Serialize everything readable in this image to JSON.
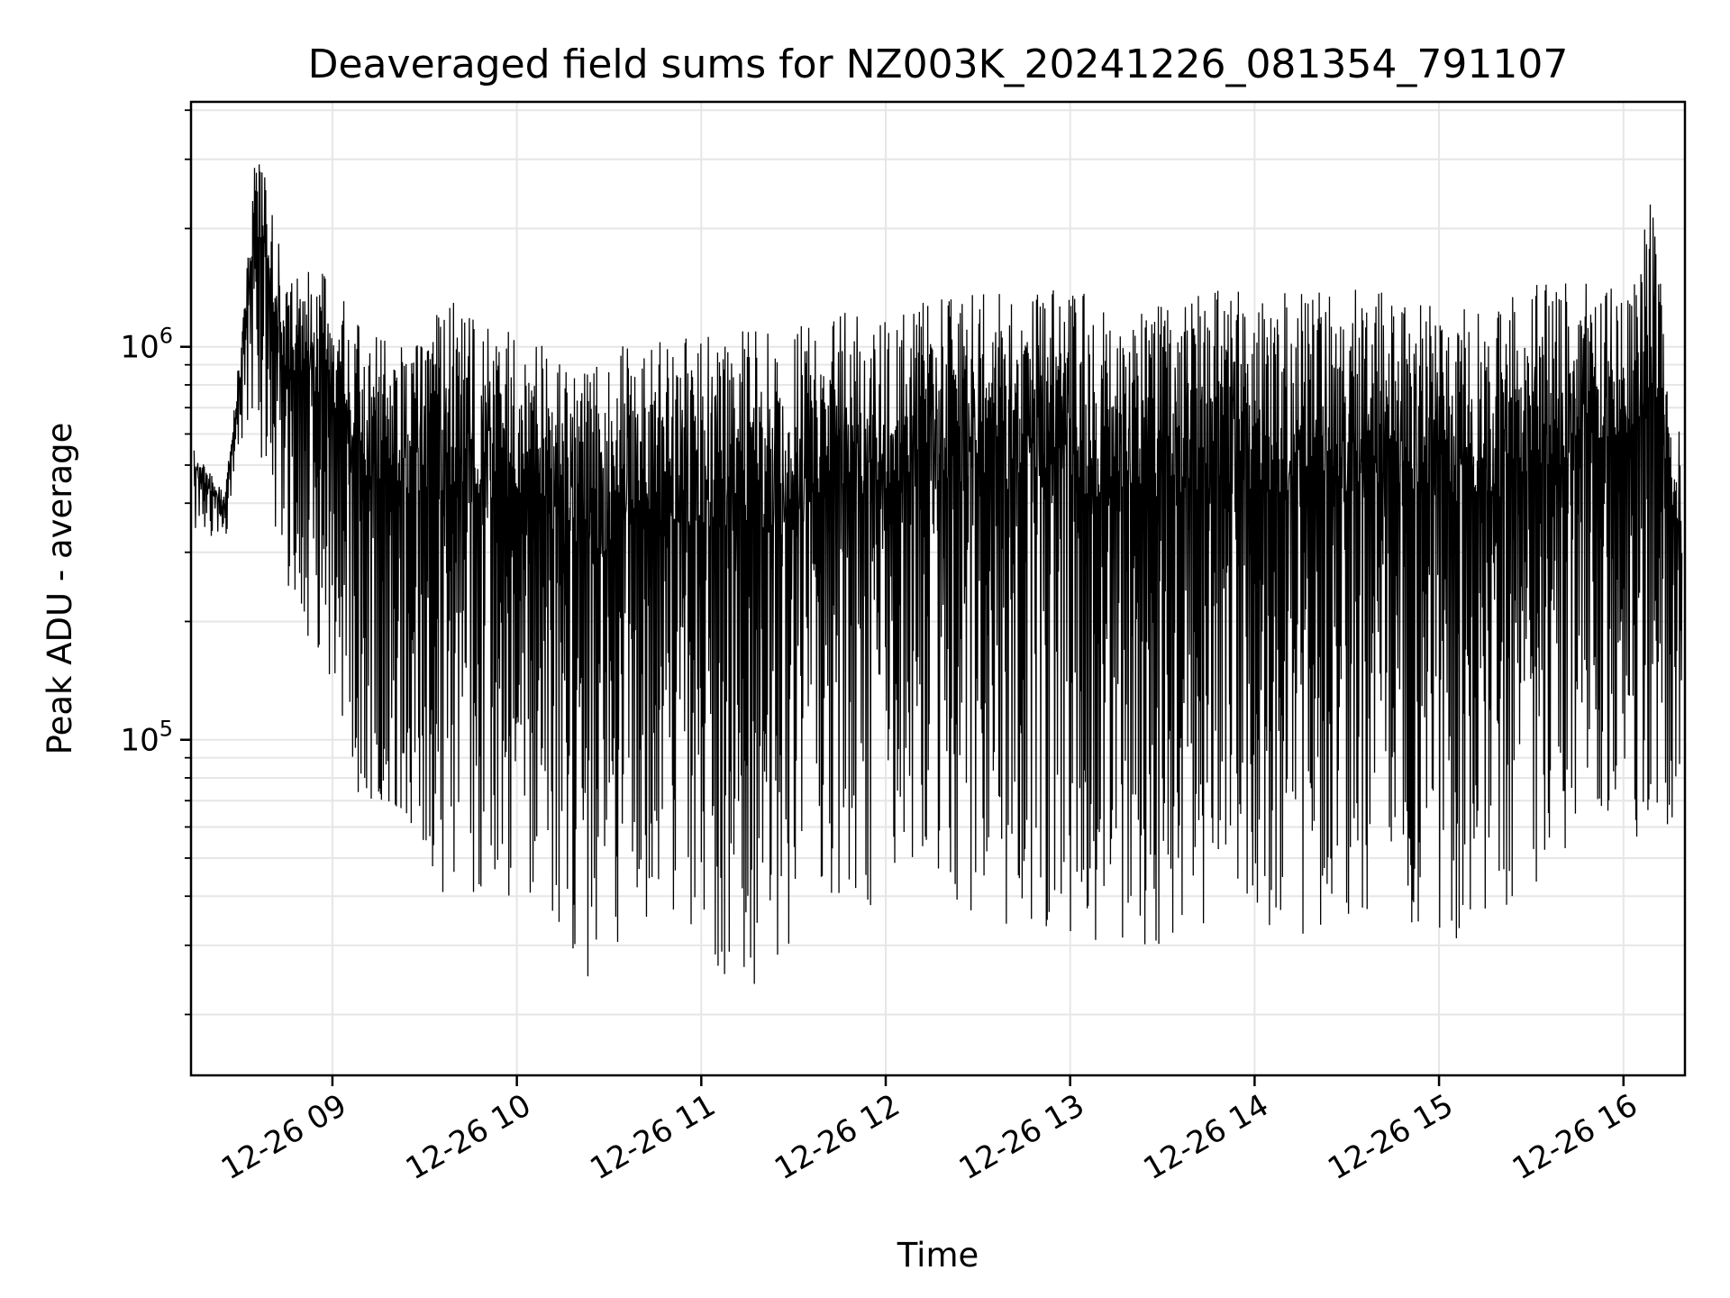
{
  "chart_data": {
    "type": "line",
    "title": "Deaveraged field sums for NZ003K_20241226_081354_791107",
    "xlabel": "Time",
    "ylabel": "Peak ADU - average",
    "yscale": "log",
    "grid": true,
    "legend": "none",
    "line_color": "#000000",
    "grid_color": "#e6e6e6",
    "x_domain": [
      "2024-12-26 08:14",
      "2024-12-26 16:20"
    ],
    "y_domain": [
      14000,
      4200000
    ],
    "x_ticks": [
      {
        "value": "2024-12-26 09:00",
        "label": "12-26 09"
      },
      {
        "value": "2024-12-26 10:00",
        "label": "12-26 10"
      },
      {
        "value": "2024-12-26 11:00",
        "label": "12-26 11"
      },
      {
        "value": "2024-12-26 12:00",
        "label": "12-26 12"
      },
      {
        "value": "2024-12-26 13:00",
        "label": "12-26 13"
      },
      {
        "value": "2024-12-26 14:00",
        "label": "12-26 14"
      },
      {
        "value": "2024-12-26 15:00",
        "label": "12-26 15"
      },
      {
        "value": "2024-12-26 16:00",
        "label": "12-26 16"
      }
    ],
    "y_major_ticks": [
      {
        "value": 100000,
        "base": "10",
        "exp": "5"
      },
      {
        "value": 1000000,
        "base": "10",
        "exp": "6"
      }
    ],
    "series": [
      {
        "x": [
          "2024-12-26 08:15",
          "2024-12-26 08:20",
          "2024-12-26 08:25",
          "2024-12-26 08:30",
          "2024-12-26 08:35",
          "2024-12-26 08:40",
          "2024-12-26 08:45",
          "2024-12-26 08:50",
          "2024-12-26 08:55",
          "2024-12-26 09:00",
          "2024-12-26 09:05",
          "2024-12-26 09:10",
          "2024-12-26 09:15",
          "2024-12-26 09:20",
          "2024-12-26 09:25",
          "2024-12-26 09:30",
          "2024-12-26 09:40",
          "2024-12-26 09:50",
          "2024-12-26 10:00",
          "2024-12-26 10:10",
          "2024-12-26 10:20",
          "2024-12-26 10:30",
          "2024-12-26 10:40",
          "2024-12-26 10:50",
          "2024-12-26 11:00",
          "2024-12-26 11:10",
          "2024-12-26 11:20",
          "2024-12-26 11:30",
          "2024-12-26 11:40",
          "2024-12-26 11:50",
          "2024-12-26 12:00",
          "2024-12-26 12:10",
          "2024-12-26 12:20",
          "2024-12-26 12:30",
          "2024-12-26 12:40",
          "2024-12-26 12:50",
          "2024-12-26 13:00",
          "2024-12-26 13:10",
          "2024-12-26 13:20",
          "2024-12-26 13:30",
          "2024-12-26 13:40",
          "2024-12-26 13:50",
          "2024-12-26 14:00",
          "2024-12-26 14:10",
          "2024-12-26 14:20",
          "2024-12-26 14:30",
          "2024-12-26 14:40",
          "2024-12-26 14:50",
          "2024-12-26 15:00",
          "2024-12-26 15:10",
          "2024-12-26 15:20",
          "2024-12-26 15:30",
          "2024-12-26 15:40",
          "2024-12-26 15:50",
          "2024-12-26 16:00",
          "2024-12-26 16:05",
          "2024-12-26 16:10",
          "2024-12-26 16:15",
          "2024-12-26 16:19"
        ],
        "upper": [
          550000,
          480000,
          420000,
          1000000,
          3200000,
          2500000,
          1400000,
          1600000,
          1500000,
          1600000,
          1400000,
          1200000,
          1100000,
          1000000,
          1000000,
          1200000,
          1300000,
          1200000,
          1100000,
          1000000,
          900000,
          950000,
          1100000,
          1100000,
          1100000,
          1150000,
          1100000,
          1150000,
          1200000,
          1250000,
          1300000,
          1350000,
          1350000,
          1400000,
          1450000,
          1450000,
          1400000,
          1350000,
          1350000,
          1350000,
          1400000,
          1400000,
          1400000,
          1400000,
          1400000,
          1400000,
          1400000,
          1350000,
          1250000,
          1250000,
          1300000,
          1450000,
          1500000,
          1450000,
          1550000,
          1750000,
          2800000,
          900000,
          600000
        ],
        "lower": [
          340000,
          330000,
          320000,
          500000,
          700000,
          300000,
          250000,
          200000,
          150000,
          120000,
          70000,
          60000,
          55000,
          50000,
          45000,
          40000,
          40000,
          40000,
          40000,
          35000,
          25000,
          25000,
          30000,
          30000,
          28000,
          24000,
          22000,
          24000,
          35000,
          35000,
          40000,
          45000,
          40000,
          35000,
          30000,
          32000,
          32000,
          30000,
          30000,
          30000,
          32000,
          32000,
          32000,
          32000,
          32000,
          32000,
          34000,
          34000,
          30000,
          30000,
          35000,
          40000,
          45000,
          65000,
          65000,
          55000,
          60000,
          55000,
          50000
        ]
      }
    ]
  }
}
